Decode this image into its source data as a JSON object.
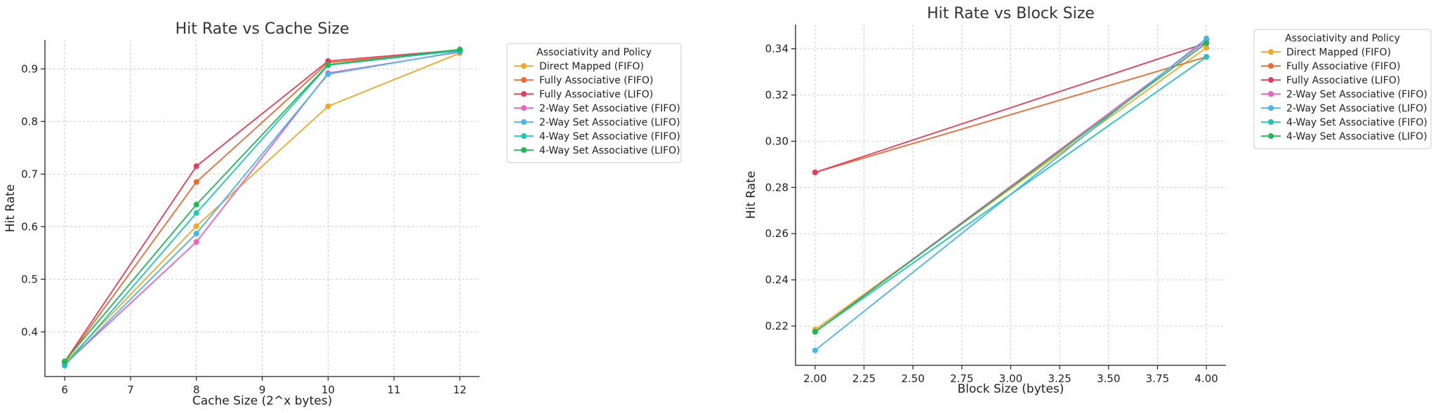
{
  "chart_data": [
    {
      "type": "line",
      "title": "Hit Rate vs Cache Size",
      "xlabel": "Cache Size (2^x bytes)",
      "ylabel": "Hit Rate",
      "xlim": [
        5.7,
        12.3
      ],
      "ylim": [
        0.315,
        0.955
      ],
      "xticks": [
        6,
        7,
        8,
        9,
        10,
        11,
        12
      ],
      "xtick_labels": [
        "6",
        "7",
        "8",
        "9",
        "10",
        "11",
        "12"
      ],
      "yticks": [
        0.4,
        0.5,
        0.6,
        0.7,
        0.8,
        0.9
      ],
      "ytick_labels": [
        "0.4",
        "0.5",
        "0.6",
        "0.7",
        "0.8",
        "0.9"
      ],
      "grid": true,
      "legend_title": "Associativity and Policy",
      "legend_position": "outside-right",
      "x": [
        6,
        8,
        10,
        12
      ],
      "series": [
        {
          "name": "Direct Mapped (FIFO)",
          "color": "#f5a623",
          "values": [
            0.341,
            0.601,
            0.829,
            0.93
          ]
        },
        {
          "name": "Fully Associative (FIFO)",
          "color": "#f0682d",
          "values": [
            0.342,
            0.685,
            0.912,
            0.934
          ]
        },
        {
          "name": "Fully Associative (LIFO)",
          "color": "#e83a5a",
          "values": [
            0.343,
            0.715,
            0.915,
            0.936
          ]
        },
        {
          "name": "2-Way Set Associative (FIFO)",
          "color": "#f05fc1",
          "values": [
            0.338,
            0.571,
            0.892,
            0.932
          ]
        },
        {
          "name": "2-Way Set Associative (LIFO)",
          "color": "#45b5f0",
          "values": [
            0.337,
            0.587,
            0.89,
            0.933
          ]
        },
        {
          "name": "4-Way Set Associative (FIFO)",
          "color": "#1cc7b8",
          "values": [
            0.336,
            0.626,
            0.907,
            0.935
          ]
        },
        {
          "name": "4-Way Set Associative (LIFO)",
          "color": "#1db954",
          "values": [
            0.344,
            0.642,
            0.908,
            0.937
          ]
        }
      ]
    },
    {
      "type": "line",
      "title": "Hit Rate vs Block Size",
      "xlabel": "Block Size (bytes)",
      "ylabel": "Hit Rate",
      "xlim": [
        1.9,
        4.1
      ],
      "ylim": [
        0.203,
        0.3505
      ],
      "xticks": [
        2.0,
        2.25,
        2.5,
        2.75,
        3.0,
        3.25,
        3.5,
        3.75,
        4.0
      ],
      "xtick_labels": [
        "2.00",
        "2.25",
        "2.50",
        "2.75",
        "3.00",
        "3.25",
        "3.50",
        "3.75",
        "4.00"
      ],
      "yticks": [
        0.22,
        0.24,
        0.26,
        0.28,
        0.3,
        0.32,
        0.34
      ],
      "ytick_labels": [
        "0.22",
        "0.24",
        "0.26",
        "0.28",
        "0.30",
        "0.32",
        "0.34"
      ],
      "grid": true,
      "legend_title": "Associativity and Policy",
      "legend_position": "outside-right",
      "x": [
        2.0,
        4.0
      ],
      "series": [
        {
          "name": "Direct Mapped (FIFO)",
          "color": "#f5a623",
          "values": [
            0.2185,
            0.3405
          ]
        },
        {
          "name": "Fully Associative (FIFO)",
          "color": "#f0682d",
          "values": [
            0.2865,
            0.3365
          ]
        },
        {
          "name": "Fully Associative (LIFO)",
          "color": "#e83a5a",
          "values": [
            0.2865,
            0.3425
          ]
        },
        {
          "name": "2-Way Set Associative (FIFO)",
          "color": "#f05fc1",
          "values": [
            0.2175,
            0.3435
          ]
        },
        {
          "name": "2-Way Set Associative (LIFO)",
          "color": "#45b5f0",
          "values": [
            0.2095,
            0.3445
          ]
        },
        {
          "name": "4-Way Set Associative (FIFO)",
          "color": "#1cc7b8",
          "values": [
            0.2175,
            0.3365
          ]
        },
        {
          "name": "4-Way Set Associative (LIFO)",
          "color": "#1db954",
          "values": [
            0.2175,
            0.3425
          ]
        }
      ]
    }
  ]
}
